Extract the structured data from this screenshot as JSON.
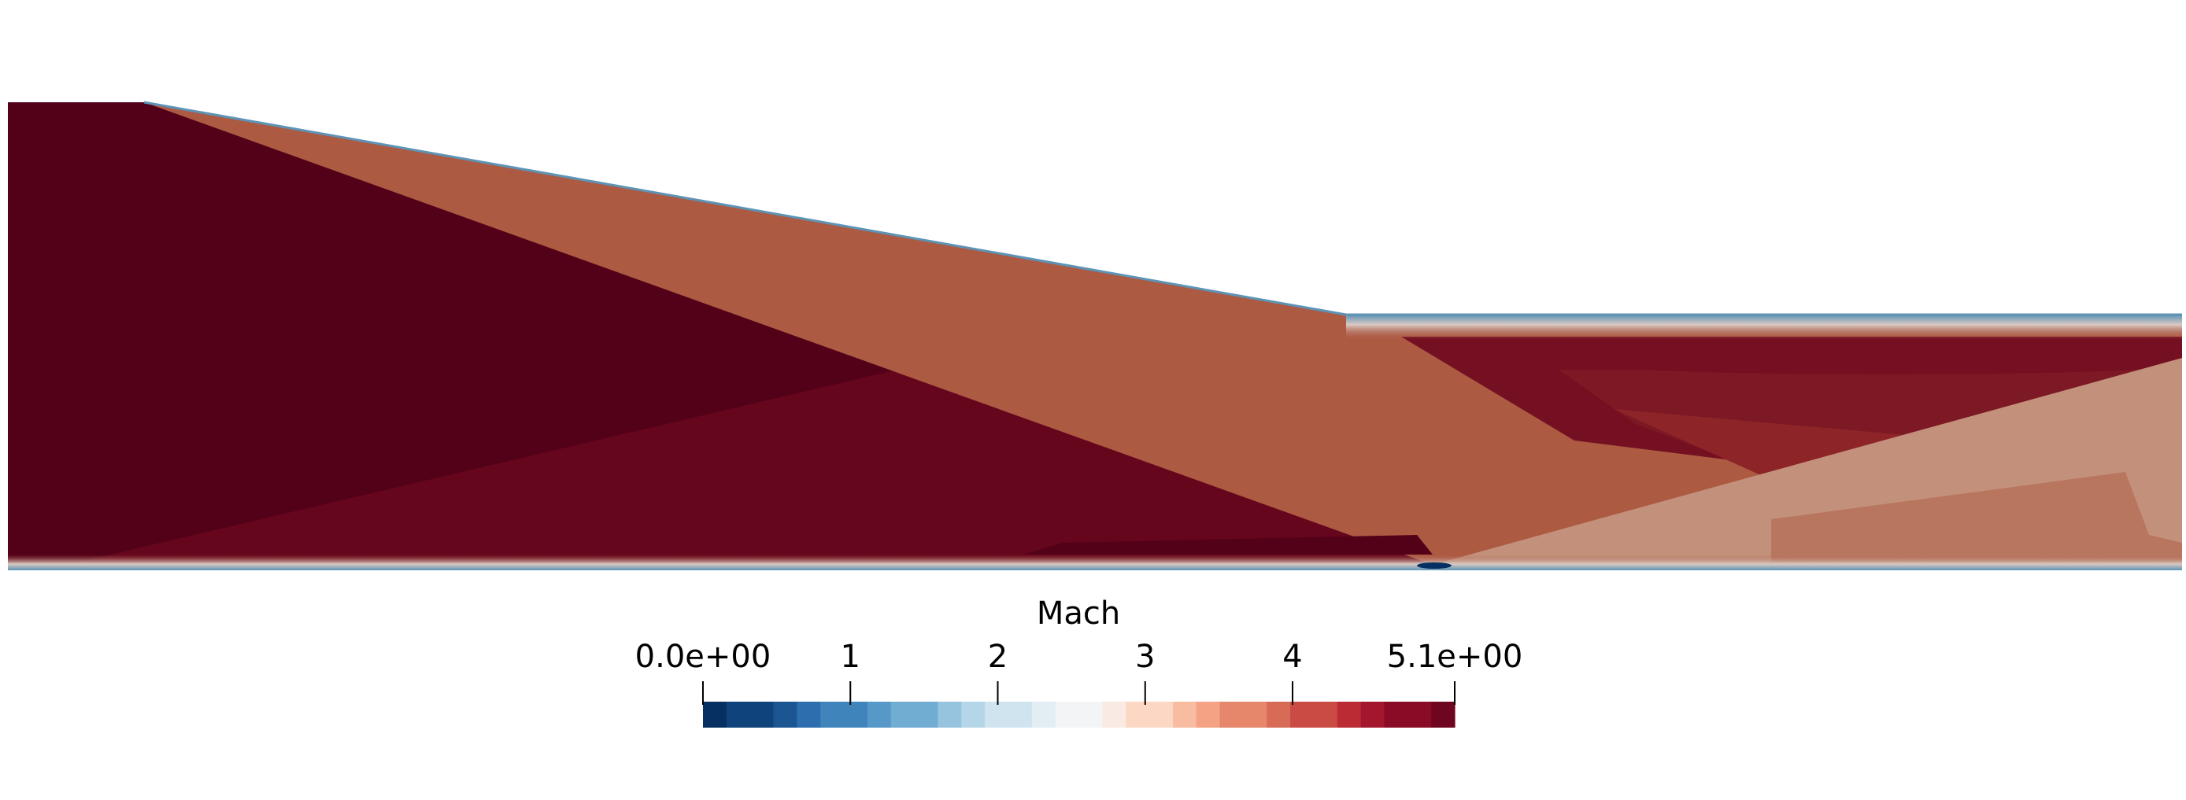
{
  "colorbar": {
    "title": "Mach",
    "min_label": "0.0e+00",
    "max_label": "5.1e+00",
    "tick_labels": [
      "1",
      "2",
      "3",
      "4"
    ],
    "ticks": [
      1,
      2,
      3,
      4
    ],
    "range": [
      0,
      5.1
    ],
    "bands": 32,
    "colormap": [
      "#053061",
      "#0f437b",
      "#1b5693",
      "#2d6eaf",
      "#3f85bc",
      "#5698c8",
      "#71acd3",
      "#96c4df",
      "#b5d6e8",
      "#cfe4ef",
      "#e3eef4",
      "#f3f4f5",
      "#f9ebe3",
      "#fcd8c4",
      "#f8bca0",
      "#f4a283",
      "#e6866b",
      "#d86b55",
      "#ca4b43",
      "#bb2b33",
      "#a3162d",
      "#8a0b26",
      "#6f061f"
    ]
  },
  "field": {
    "variable": "Mach",
    "colors": {
      "freestream": "#530019",
      "post_shock": "#ad5a43",
      "secondary": "#66061d",
      "reflected": "#741021",
      "band_1": "#7d1924",
      "band_2": "#8c2428",
      "expansion": "#c3917b",
      "expansion_2": "#b8765f",
      "boundary_layer": "#d9c9c2",
      "wall": "#5d93b5"
    }
  }
}
